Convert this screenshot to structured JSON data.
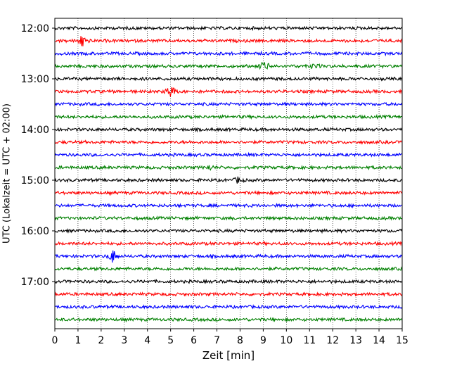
{
  "chart_data": {
    "type": "line",
    "title": "",
    "xlabel": "Zeit  [min]",
    "ylabel": "UTC (Lokalzeit = UTC + 02:00)",
    "xlim": [
      0,
      15
    ],
    "x_ticks": [
      "0",
      "1",
      "2",
      "3",
      "4",
      "5",
      "6",
      "7",
      "8",
      "9",
      "10",
      "11",
      "12",
      "13",
      "14",
      "15"
    ],
    "y_tick_labels": [
      "12:00",
      "13:00",
      "14:00",
      "15:00",
      "16:00",
      "17:00"
    ],
    "y_range": [
      "12:00",
      "18:00"
    ],
    "row_interval_min": 15,
    "grid": "vertical dotted",
    "color_cycle": [
      "#000000",
      "#ff0000",
      "#0000ff",
      "#008000"
    ],
    "traces": [
      {
        "start": "12:00",
        "color": "#000000"
      },
      {
        "start": "12:15",
        "color": "#ff0000",
        "events": [
          {
            "x": 1.2,
            "amp": 1.4
          }
        ]
      },
      {
        "start": "12:30",
        "color": "#0000ff"
      },
      {
        "start": "12:45",
        "color": "#008000",
        "events": [
          {
            "x": 9.05,
            "amp": 1.2
          },
          {
            "x": 11.2,
            "amp": 0.5
          }
        ]
      },
      {
        "start": "13:00",
        "color": "#000000"
      },
      {
        "start": "13:15",
        "color": "#ff0000",
        "events": [
          {
            "x": 5.0,
            "amp": 1.5
          }
        ]
      },
      {
        "start": "13:30",
        "color": "#0000ff"
      },
      {
        "start": "13:45",
        "color": "#008000"
      },
      {
        "start": "14:00",
        "color": "#000000"
      },
      {
        "start": "14:15",
        "color": "#ff0000"
      },
      {
        "start": "14:30",
        "color": "#0000ff"
      },
      {
        "start": "14:45",
        "color": "#008000",
        "events": [
          {
            "x": 6.7,
            "amp": 0.4
          }
        ]
      },
      {
        "start": "15:00",
        "color": "#000000",
        "events": [
          {
            "x": 7.9,
            "amp": 0.5
          }
        ]
      },
      {
        "start": "15:15",
        "color": "#ff0000"
      },
      {
        "start": "15:30",
        "color": "#0000ff"
      },
      {
        "start": "15:45",
        "color": "#008000"
      },
      {
        "start": "16:00",
        "color": "#000000"
      },
      {
        "start": "16:15",
        "color": "#ff0000"
      },
      {
        "start": "16:30",
        "color": "#0000ff",
        "events": [
          {
            "x": 2.5,
            "amp": 1.3
          }
        ]
      },
      {
        "start": "16:45",
        "color": "#008000"
      },
      {
        "start": "17:00",
        "color": "#000000"
      },
      {
        "start": "17:15",
        "color": "#ff0000"
      },
      {
        "start": "17:30",
        "color": "#0000ff"
      },
      {
        "start": "17:45",
        "color": "#008000"
      }
    ]
  }
}
